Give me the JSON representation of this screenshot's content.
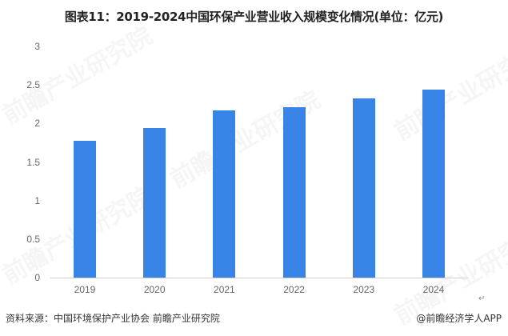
{
  "title": "图表11：2019-2024中国环保产业营业收入规模变化情况(单位：亿元)",
  "chart_data": {
    "type": "bar",
    "title": "图表11：2019-2024中国环保产业营业收入规模变化情况(单位：亿元)",
    "xlabel": "",
    "ylabel": "",
    "categories": [
      "2019",
      "2020",
      "2021",
      "2022",
      "2023",
      "2024"
    ],
    "values": [
      1.78,
      1.94,
      2.17,
      2.21,
      2.33,
      2.44
    ],
    "ylim": [
      0,
      3
    ],
    "yticks": [
      "0",
      "0.5",
      "1",
      "1.5",
      "2",
      "2.5",
      "3"
    ],
    "grid": false,
    "legend": null,
    "bar_color": "#3784e6"
  },
  "footer": {
    "source": "资料来源：中国环境保护产业协会 前瞻产业研究院",
    "credit": "@前瞻经济学人APP",
    "return_mark": "↵"
  },
  "watermark": {
    "text": "前瞻产业研究院"
  }
}
